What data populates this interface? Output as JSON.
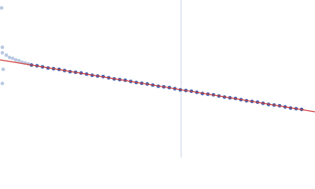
{
  "chart_data": {
    "type": "scatter",
    "xlim": [
      0,
      400
    ],
    "ylim": [
      0,
      200
    ],
    "vline": {
      "x": 230,
      "color": "#c9d2e6"
    },
    "series": [
      {
        "mode": "markers",
        "color": "#b9c9e2",
        "x": [
          2,
          3,
          3,
          4,
          3,
          8,
          12,
          16,
          20,
          24,
          28,
          32,
          36
        ],
        "values": [
          190,
          140,
          133,
          112,
          94,
          130,
          127,
          126,
          124,
          123,
          121,
          120,
          119
        ]
      },
      {
        "mode": "markers",
        "color": "#3d64b1",
        "x": [
          40,
          47,
          54,
          61,
          68,
          75,
          82,
          89,
          96,
          103,
          110,
          117,
          124,
          131,
          138,
          145,
          152,
          159,
          166,
          173,
          180,
          187,
          194,
          201,
          208,
          215,
          222,
          229,
          236,
          243,
          250,
          257,
          264,
          271,
          278,
          285,
          292,
          299,
          306,
          313,
          320,
          327,
          334,
          341,
          348,
          355,
          362,
          369,
          376,
          383
        ],
        "values": [
          117.4,
          116.5,
          115.1,
          113.6,
          112.8,
          111.9,
          110.5,
          109.0,
          108.2,
          107.3,
          105.9,
          104.4,
          103.5,
          102.7,
          101.2,
          99.8,
          98.9,
          98.1,
          96.6,
          95.2,
          94.3,
          93.4,
          92.0,
          90.5,
          89.7,
          88.8,
          87.4,
          85.9,
          85.1,
          84.2,
          82.8,
          81.3,
          80.4,
          79.6,
          78.1,
          76.7,
          75.8,
          75.0,
          73.5,
          72.1,
          71.2,
          70.3,
          68.9,
          67.4,
          66.6,
          65.7,
          64.3,
          62.8,
          62.0,
          61.1
        ]
      },
      {
        "mode": "line",
        "color": "#d23a3a",
        "x": [
          0,
          400
        ],
        "values": [
          124,
          58
        ]
      }
    ]
  }
}
